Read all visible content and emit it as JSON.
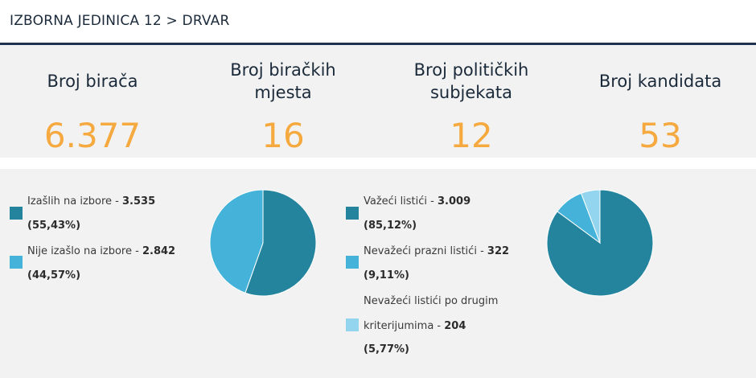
{
  "header": {
    "title": "IZBORNA JEDINICA 12 > DRVAR"
  },
  "stats": [
    {
      "label_line1": "Broj birača",
      "label_line2": "",
      "value": "6.377"
    },
    {
      "label_line1": "Broj biračkih",
      "label_line2": "mjesta",
      "value": "16"
    },
    {
      "label_line1": "Broj političkih",
      "label_line2": "subjekata",
      "value": "12"
    },
    {
      "label_line1": "Broj kandidata",
      "label_line2": "",
      "value": "53"
    }
  ],
  "colors": {
    "accent": "#f5a93f",
    "dark_blue": "#24849e",
    "mid_blue": "#45b3d9",
    "light_blue": "#93d5ee",
    "rule": "#1f3350"
  },
  "chart_data": [
    {
      "type": "pie",
      "title": "",
      "series": [
        {
          "name": "Izašlih na izbore",
          "value_text": "3.535",
          "percent_text": "(55,43%)",
          "value": 3535,
          "percent": 55.43,
          "color": "#24849e"
        },
        {
          "name": "Nije izašlo na izbore",
          "value_text": "2.842",
          "percent_text": "(44,57%)",
          "value": 2842,
          "percent": 44.57,
          "color": "#45b3d9"
        }
      ]
    },
    {
      "type": "pie",
      "title": "",
      "series": [
        {
          "name": "Važeći listići",
          "value_text": "3.009",
          "percent_text": "(85,12%)",
          "value": 3009,
          "percent": 85.12,
          "color": "#24849e"
        },
        {
          "name": "Nevažeći prazni listići",
          "value_text": "322",
          "percent_text": "(9,11%)",
          "value": 322,
          "percent": 9.11,
          "color": "#45b3d9"
        },
        {
          "name_line1": "Nevažeći listići po drugim",
          "name_line2": "kriterijumima",
          "value_text": "204",
          "percent_text": "(5,77%)",
          "value": 204,
          "percent": 5.77,
          "color": "#93d5ee"
        }
      ]
    }
  ]
}
